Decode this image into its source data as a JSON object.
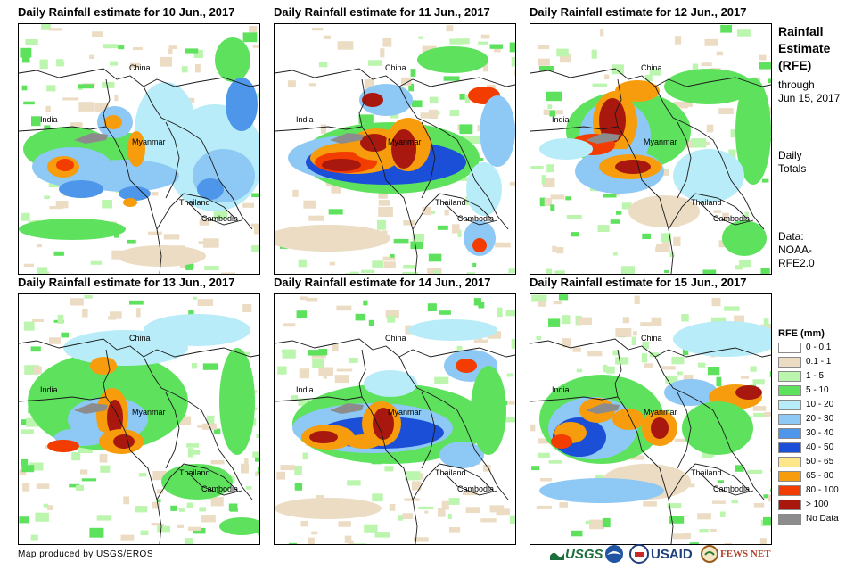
{
  "panels": [
    {
      "title": "Daily Rainfall estimate for 10 Jun., 2017"
    },
    {
      "title": "Daily Rainfall estimate for 11 Jun., 2017"
    },
    {
      "title": "Daily Rainfall estimate for 12 Jun., 2017"
    },
    {
      "title": "Daily Rainfall estimate for 13 Jun., 2017"
    },
    {
      "title": "Daily Rainfall estimate for 14 Jun., 2017"
    },
    {
      "title": "Daily Rainfall estimate for 15 Jun., 2017"
    }
  ],
  "map_labels": {
    "china": "China",
    "india": "India",
    "myanmar": "Myanmar",
    "thailand": "Thailand",
    "cambodia": "Cambodia"
  },
  "sidebar": {
    "title_line1": "Rainfall",
    "title_line2": "Estimate",
    "title_line3": "(RFE)",
    "through": "through",
    "date": "Jun 15, 2017",
    "daily": "Daily",
    "totals": "Totals",
    "data_line1": "Data:",
    "data_line2": "NOAA-",
    "data_line3": "RFE2.0"
  },
  "legend": {
    "title": "RFE (mm)",
    "items": [
      {
        "label": "0 - 0.1",
        "color": "#ffffff"
      },
      {
        "label": "0.1 - 1",
        "color": "#ebdcc3"
      },
      {
        "label": "1 - 5",
        "color": "#bcf5ae"
      },
      {
        "label": "5 - 10",
        "color": "#5ee25e"
      },
      {
        "label": "10 - 20",
        "color": "#b8ecf8"
      },
      {
        "label": "20 - 30",
        "color": "#8ec8f5"
      },
      {
        "label": "30 - 40",
        "color": "#4d96ea"
      },
      {
        "label": "40 - 50",
        "color": "#1c4fd8"
      },
      {
        "label": "50 - 65",
        "color": "#fde58a"
      },
      {
        "label": "65 - 80",
        "color": "#f79c0c"
      },
      {
        "label": "80 - 100",
        "color": "#f23c00"
      },
      {
        "label": "> 100",
        "color": "#a8180f"
      },
      {
        "label": "No Data",
        "color": "#8c8c8c"
      }
    ]
  },
  "footer": {
    "credit": "Map produced by USGS/EROS",
    "usgs": "USGS",
    "usaid": "USAID",
    "fewsnet": "FEWS NET"
  }
}
